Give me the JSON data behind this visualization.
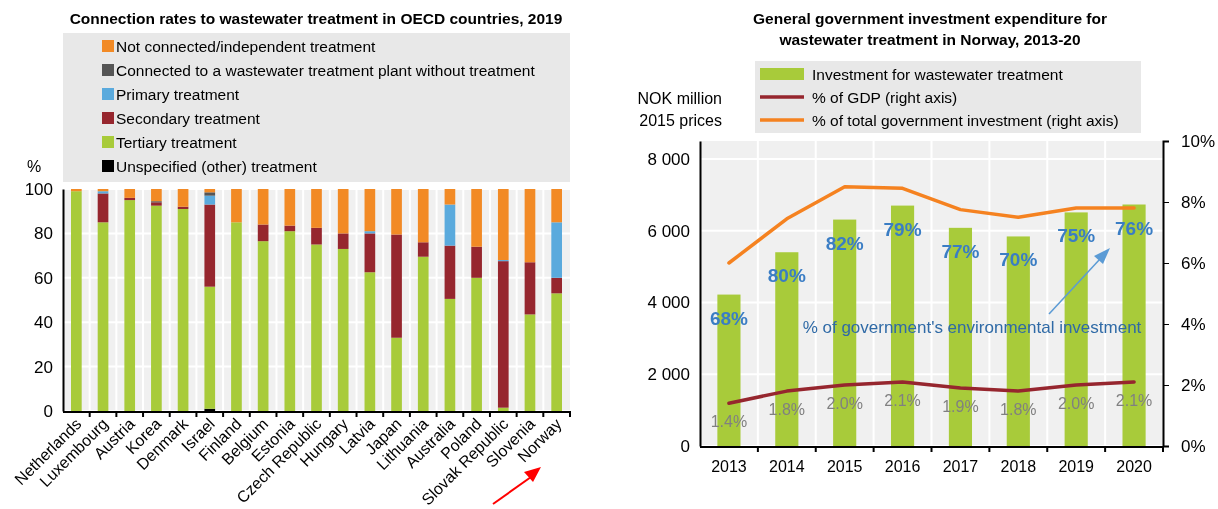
{
  "chart_data": [
    {
      "type": "bar",
      "stacked": true,
      "title": "Connection rates to wastewater treatment in OECD countries, 2019",
      "ylabel": "%",
      "categories": [
        "Netherlands",
        "Luxembourg",
        "Austria",
        "Korea",
        "Denmark",
        "Israel",
        "Finland",
        "Belgium",
        "Estonia",
        "Czech Republic",
        "Hungary",
        "Latvia",
        "Japan",
        "Lithuania",
        "Australia",
        "Poland",
        "Slovak Republic",
        "Slovenia",
        "Norway"
      ],
      "ylim": [
        0,
        100
      ],
      "yticks": [
        0,
        20,
        40,
        60,
        80,
        100
      ],
      "grid": true,
      "legend": "top",
      "series": [
        {
          "name": "Unspecified (other) treatment",
          "color": "#000000",
          "values": [
            0,
            0,
            0,
            0,
            0,
            1,
            0,
            0,
            0,
            0,
            0,
            0,
            0,
            0,
            0,
            0,
            0,
            0,
            0
          ]
        },
        {
          "name": "Tertiary treatment",
          "color": "#a8cb3a",
          "values": [
            99,
            85,
            95,
            92.5,
            91,
            55,
            85,
            76.5,
            81,
            75,
            73,
            62.5,
            33,
            69.5,
            50.5,
            60,
            1.5,
            43.5,
            53
          ]
        },
        {
          "name": "Secondary treatment",
          "color": "#96262e",
          "values": [
            0,
            13,
            1,
            1.5,
            1,
            37,
            0,
            7.5,
            2.5,
            7.5,
            7,
            17.5,
            46.5,
            6.5,
            24,
            14,
            66,
            23.5,
            7
          ]
        },
        {
          "name": "Primary treatment",
          "color": "#5aaadd",
          "values": [
            0,
            1,
            0,
            0,
            0,
            4,
            0,
            0,
            0,
            0,
            0,
            1,
            0,
            0,
            18.5,
            0,
            0.5,
            0,
            25
          ]
        },
        {
          "name": "Connected to a wastewater treatment plant without treatment",
          "color": "#555555",
          "values": [
            0,
            0,
            0,
            0.5,
            0,
            1.5,
            0,
            0,
            0,
            0,
            0,
            0,
            0,
            0,
            0,
            0,
            0,
            0,
            0
          ]
        },
        {
          "name": "Not connected/independent treatment",
          "color": "#f28a25",
          "values": [
            1,
            1,
            4,
            5.5,
            8,
            1.5,
            15,
            16,
            16.5,
            17.5,
            20,
            19,
            20.5,
            24,
            7,
            26,
            32,
            33,
            15
          ]
        }
      ]
    },
    {
      "type": "bar",
      "title": "General government investment expenditure for\nwastewater treatment in Norway, 2013-20",
      "ylabel": "NOK million\n2015 prices",
      "categories": [
        "2013",
        "2014",
        "2015",
        "2016",
        "2017",
        "2018",
        "2019",
        "2020"
      ],
      "ylim": [
        0,
        8500
      ],
      "yticks": [
        0,
        {
          "value": 2000,
          "label": "2 000"
        },
        {
          "value": 4000,
          "label": "4 000"
        },
        {
          "value": 6000,
          "label": "6 000"
        },
        {
          "value": 8000,
          "label": "8 000"
        }
      ],
      "y2lim": [
        0,
        10
      ],
      "y2ticks": [
        {
          "value": 0,
          "label": "0%"
        },
        {
          "value": 2,
          "label": "2%"
        },
        {
          "value": 4,
          "label": "4%"
        },
        {
          "value": 6,
          "label": "6%"
        },
        {
          "value": 8,
          "label": "8%"
        },
        {
          "value": 10,
          "label": "10%"
        }
      ],
      "grid": true,
      "legend": "top",
      "series": [
        {
          "name": "Investment for wastewater treatment",
          "color": "#a8cb3a",
          "values": [
            4220,
            5400,
            6310,
            6700,
            6080,
            5840,
            6510,
            6730
          ]
        },
        {
          "name": "% of GDP (right axis)",
          "type": "line",
          "axis": "y2",
          "color": "#96262e",
          "values": [
            1.4,
            1.8,
            2.0,
            2.1,
            1.9,
            1.8,
            2.0,
            2.1
          ],
          "value_labels": [
            "1.4%",
            "1.8%",
            "2.0%",
            "2.1%",
            "1.9%",
            "1.8%",
            "2.0%",
            "2.1%"
          ]
        },
        {
          "name": "% of total government investment (right axis)",
          "type": "line",
          "axis": "y2",
          "color": "#f58220",
          "values": [
            6.0,
            7.45,
            8.5,
            8.45,
            7.75,
            7.5,
            7.8,
            7.8
          ]
        }
      ],
      "annotations": [
        "68%",
        "80%",
        "82%",
        "79%",
        "77%",
        "70%",
        "75%",
        "76%",
        "% of government's environmental investment"
      ]
    }
  ]
}
